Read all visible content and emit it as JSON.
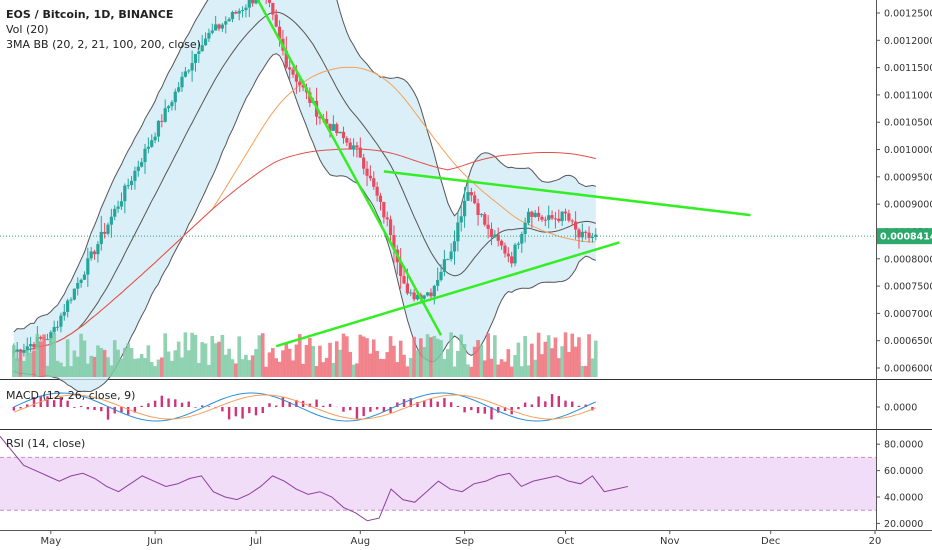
{
  "legend": {
    "symbol": "EOS / Bitcoin, 1D, BINANCE",
    "volume": "Vol (20)",
    "bands": "3MA BB (20, 2, 21, 100, 200, close)",
    "macd": "MACD (12, 26, close, 9)",
    "rsi": "RSI (14, close)"
  },
  "price_badge": "0.0008414",
  "colors": {
    "bull": "#7ccaa4",
    "bear": "#ef6f78",
    "bull_candle": "#26a69a",
    "bear_candle": "#e84a5f",
    "trend_lines": "#33ee22",
    "ma_short": "#555555",
    "ma_mid": "#f6a15a",
    "ma_long": "#e0504a",
    "band_fill": "#cfe9f7",
    "macd_line": "#2a8fd6",
    "signal_line": "#f5a05c",
    "macd_hist": "#d0337a",
    "rsi_line": "#8e3f9f",
    "rsi_band": "#f1ddf8",
    "badge": "#2ca86a"
  },
  "chart_data": [
    {
      "type": "candlestick",
      "title": "EOS / Bitcoin, 1D, BINANCE",
      "y_axis_ticks": [
        "0.0012500",
        "0.0012000",
        "0.0011500",
        "0.0011000",
        "0.0010500",
        "0.0010000",
        "0.0009500",
        "0.0009000",
        "0.0008500",
        "0.0008000",
        "0.0007500",
        "0.0007000",
        "0.0006500",
        "0.0006000"
      ],
      "ylim": [
        0.0006,
        0.00125
      ],
      "last_price": 0.0008414,
      "x_axis_labels": [
        "May",
        "Jun",
        "Jul",
        "Aug",
        "Sep",
        "Oct",
        "Nov",
        "Dec",
        "20"
      ],
      "close_path_approx": [
        {
          "date": "2019-04-20",
          "close": 0.00063
        },
        {
          "date": "2019-05-01",
          "close": 0.00066
        },
        {
          "date": "2019-06-15",
          "close": 0.0012
        },
        {
          "date": "2019-07-01",
          "close": 0.00128
        },
        {
          "date": "2019-07-05",
          "close": 0.00126
        },
        {
          "date": "2019-07-10",
          "close": 0.00116
        },
        {
          "date": "2019-07-20",
          "close": 0.00106
        },
        {
          "date": "2019-08-01",
          "close": 0.00099
        },
        {
          "date": "2019-08-10",
          "close": 0.00085
        },
        {
          "date": "2019-08-15",
          "close": 0.00073
        },
        {
          "date": "2019-08-22",
          "close": 0.00074
        },
        {
          "date": "2019-08-28",
          "close": 0.00082
        },
        {
          "date": "2019-09-02",
          "close": 0.00093
        },
        {
          "date": "2019-09-08",
          "close": 0.00085
        },
        {
          "date": "2019-09-15",
          "close": 0.0008
        },
        {
          "date": "2019-09-20",
          "close": 0.00089
        },
        {
          "date": "2019-09-25",
          "close": 0.00087
        },
        {
          "date": "2019-10-01",
          "close": 0.00088
        },
        {
          "date": "2019-10-05",
          "close": 0.00084
        },
        {
          "date": "2019-10-10",
          "close": 0.00084
        }
      ],
      "trend_lines": [
        {
          "from": {
            "date": "2019-07-01",
            "price": 0.00128
          },
          "to": {
            "date": "2019-08-25",
            "price": 0.00066
          }
        },
        {
          "from": {
            "date": "2019-08-08",
            "price": 0.00096
          },
          "to": {
            "date": "2019-11-25",
            "price": 0.00088
          }
        },
        {
          "from": {
            "date": "2019-07-07",
            "price": 0.00064
          },
          "to": {
            "date": "2019-10-17",
            "price": 0.00083
          }
        }
      ]
    },
    {
      "type": "bar",
      "title": "Vol (20)"
    },
    {
      "type": "histogram",
      "title": "MACD (12, 26, close, 9)",
      "y_axis_ticks": [
        "0.0000"
      ]
    },
    {
      "type": "line",
      "title": "RSI (14, close)",
      "y_axis_ticks": [
        "80.0000",
        "60.0000",
        "40.0000",
        "20.0000"
      ],
      "ylim": [
        15,
        90
      ],
      "bands": [
        30,
        70
      ],
      "series": [
        {
          "values": [
            86,
            75,
            64,
            60,
            56,
            52,
            56,
            58,
            54,
            48,
            44,
            50,
            56,
            52,
            48,
            50,
            54,
            56,
            44,
            40,
            38,
            42,
            48,
            56,
            52,
            46,
            42,
            44,
            40,
            32,
            28,
            22,
            24,
            46,
            38,
            36,
            44,
            52,
            46,
            44,
            50,
            52,
            56,
            58,
            48,
            52,
            54,
            56,
            52,
            50,
            56,
            44,
            46,
            48
          ]
        }
      ]
    }
  ]
}
